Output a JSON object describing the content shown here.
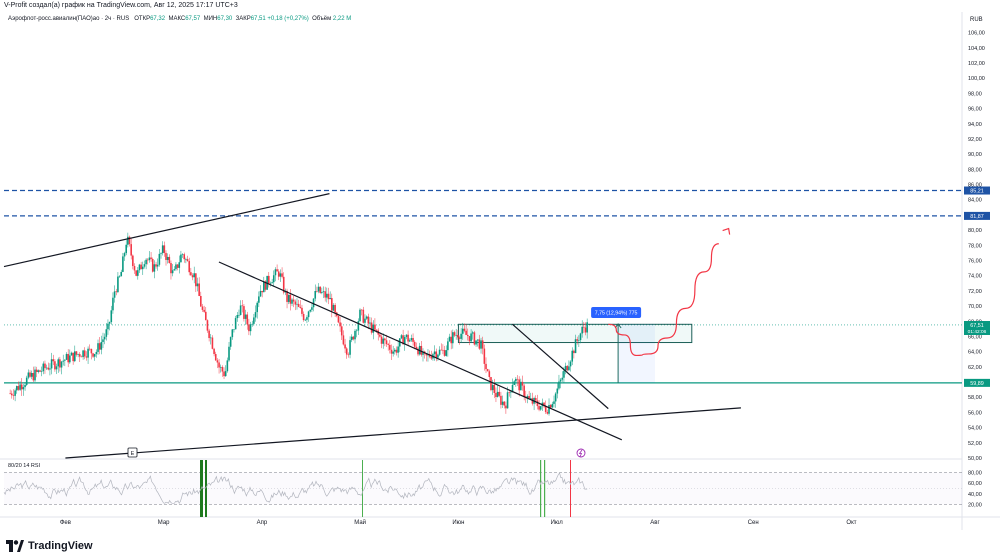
{
  "header": {
    "creator": "V-Profit создал(а) график на TradingView.com, Авг 12, 2025 17:17 UTC+3",
    "symbol": "Аэрофлот-росс.авиалин(ПАО)ао · 2ч · RUS",
    "ohlc": [
      {
        "label": "ОТКР",
        "value": "67,32"
      },
      {
        "label": "МАКС",
        "value": "67,57"
      },
      {
        "label": "МИН",
        "value": "67,30"
      },
      {
        "label": "ЗАКР",
        "value": "67,51"
      }
    ],
    "change": "+0,18 (+0,27%)",
    "volume_label": "Объём",
    "volume": "2,22 M",
    "currency": "RUB"
  },
  "footer": {
    "brand": "TradingView",
    "logo_icon": "tradingview-logo-icon"
  },
  "colors": {
    "up": "#089981",
    "down": "#f23645",
    "blue": "#1e53a5",
    "teal": "#089981",
    "rsi": "#b2b5be",
    "forecast": "#f23645"
  },
  "chart_data": {
    "type": "candlestick",
    "title": "Аэрофлот-росс.авиалин(ПАО)ао · 2ч · RUS",
    "y_axis": {
      "min": 50,
      "max": 107,
      "unit": "RUB",
      "ticks": [
        "106,00",
        "104,00",
        "102,00",
        "100,00",
        "98,00",
        "96,00",
        "94,00",
        "92,00",
        "90,00",
        "88,00",
        "86,00",
        "84,00",
        "82,00",
        "80,00",
        "78,00",
        "76,00",
        "74,00",
        "72,00",
        "70,00",
        "68,00",
        "66,00",
        "64,00",
        "62,00",
        "60,00",
        "58,00",
        "56,00",
        "54,00",
        "52,00",
        "50,00"
      ]
    },
    "x_axis": {
      "labels": [
        {
          "label": "Фев",
          "t": 0
        },
        {
          "label": "Мар",
          "t": 80
        },
        {
          "label": "Апр",
          "t": 160
        },
        {
          "label": "Май",
          "t": 240
        },
        {
          "label": "Июн",
          "t": 320
        },
        {
          "label": "Июл",
          "t": 400
        },
        {
          "label": "Авг",
          "t": 480
        },
        {
          "label": "Сен",
          "t": 560
        },
        {
          "label": "Окт",
          "t": 640
        }
      ],
      "range": [
        -50,
        730
      ]
    },
    "price_path": [
      [
        -45,
        58.5
      ],
      [
        -30,
        60.5
      ],
      [
        -15,
        62
      ],
      [
        0,
        63
      ],
      [
        15,
        64
      ],
      [
        25,
        64
      ],
      [
        35,
        67
      ],
      [
        40,
        72
      ],
      [
        45,
        74
      ],
      [
        50,
        79
      ],
      [
        58,
        74
      ],
      [
        65,
        76.5
      ],
      [
        72,
        75
      ],
      [
        80,
        77.5
      ],
      [
        88,
        74
      ],
      [
        95,
        77
      ],
      [
        105,
        74
      ],
      [
        112,
        69
      ],
      [
        118,
        66
      ],
      [
        125,
        62
      ],
      [
        130,
        61
      ],
      [
        135,
        66
      ],
      [
        142,
        70
      ],
      [
        150,
        67
      ],
      [
        158,
        72
      ],
      [
        166,
        73.5
      ],
      [
        174,
        74.5
      ],
      [
        180,
        71
      ],
      [
        188,
        70
      ],
      [
        195,
        68.5
      ],
      [
        205,
        72
      ],
      [
        215,
        71
      ],
      [
        222,
        67.5
      ],
      [
        230,
        64
      ],
      [
        240,
        69
      ],
      [
        250,
        67
      ],
      [
        258,
        65.5
      ],
      [
        268,
        64
      ],
      [
        276,
        66
      ],
      [
        285,
        65
      ],
      [
        292,
        63
      ],
      [
        300,
        64
      ],
      [
        308,
        64
      ],
      [
        315,
        66
      ],
      [
        320,
        66.5
      ],
      [
        330,
        66
      ],
      [
        338,
        65
      ],
      [
        345,
        60
      ],
      [
        352,
        58
      ],
      [
        358,
        57
      ],
      [
        365,
        60.5
      ],
      [
        372,
        59
      ],
      [
        378,
        57.5
      ],
      [
        385,
        57
      ],
      [
        392,
        56.5
      ],
      [
        398,
        58
      ],
      [
        403,
        60
      ],
      [
        408,
        62
      ],
      [
        413,
        64
      ],
      [
        418,
        66
      ],
      [
        422,
        67.2
      ],
      [
        425,
        67.4
      ]
    ],
    "price_scale_labels": [
      {
        "value": 85.21,
        "label": "85,21",
        "color": "blue"
      },
      {
        "value": 81.87,
        "label": "81,87",
        "color": "blue"
      },
      {
        "value": 67.51,
        "label": "67,51",
        "sublabel": "01:42:06",
        "color": "teal"
      },
      {
        "value": 59.89,
        "label": "59,89",
        "color": "teal"
      }
    ],
    "levels": [
      {
        "name": "resistance-85-21",
        "value": 85.21,
        "style": "dashed",
        "color": "blue"
      },
      {
        "name": "resistance-81-87",
        "value": 81.87,
        "style": "dashed",
        "color": "blue"
      },
      {
        "name": "support-59-89",
        "value": 59.89,
        "style": "solid",
        "color": "teal"
      }
    ],
    "trendlines": [
      {
        "name": "upper-channel-line",
        "from": [
          -50,
          75.2
        ],
        "to": [
          215,
          84.8
        ]
      },
      {
        "name": "descending-trendline-1",
        "from": [
          125,
          75.8
        ],
        "to": [
          453,
          52.4
        ]
      },
      {
        "name": "descending-trendline-2",
        "from": [
          364,
          67.6
        ],
        "to": [
          442,
          56.5
        ]
      },
      {
        "name": "lower-support-line",
        "from": [
          0,
          50
        ],
        "to": [
          550,
          56.6
        ]
      }
    ],
    "zone": {
      "name": "consolidation-zone",
      "t1": 320,
      "t2": 510,
      "top": 67.6,
      "bottom": 65.2
    },
    "measure": {
      "label": "7,75 (12,94%) 775",
      "t": 450,
      "from": 59.89,
      "to": 67.64,
      "t_end": 480
    },
    "forecast_path": [
      [
        442,
        67.6
      ],
      [
        455,
        66.2
      ],
      [
        465,
        63.5
      ],
      [
        475,
        63.7
      ],
      [
        490,
        65.8
      ],
      [
        505,
        69.7
      ],
      [
        520,
        74.5
      ],
      [
        532,
        78.2
      ]
    ],
    "forecast_arrow_tip": [
      540,
      80.2
    ],
    "event_marker": "E",
    "flash_icon": "flash-icon",
    "rsi": {
      "label": "80/20 14 RSI",
      "ticks": [
        "80,00",
        "60,00",
        "40,00",
        "20,00"
      ],
      "min": 0,
      "max": 100,
      "upper_band": 80,
      "lower_band": 20
    }
  }
}
